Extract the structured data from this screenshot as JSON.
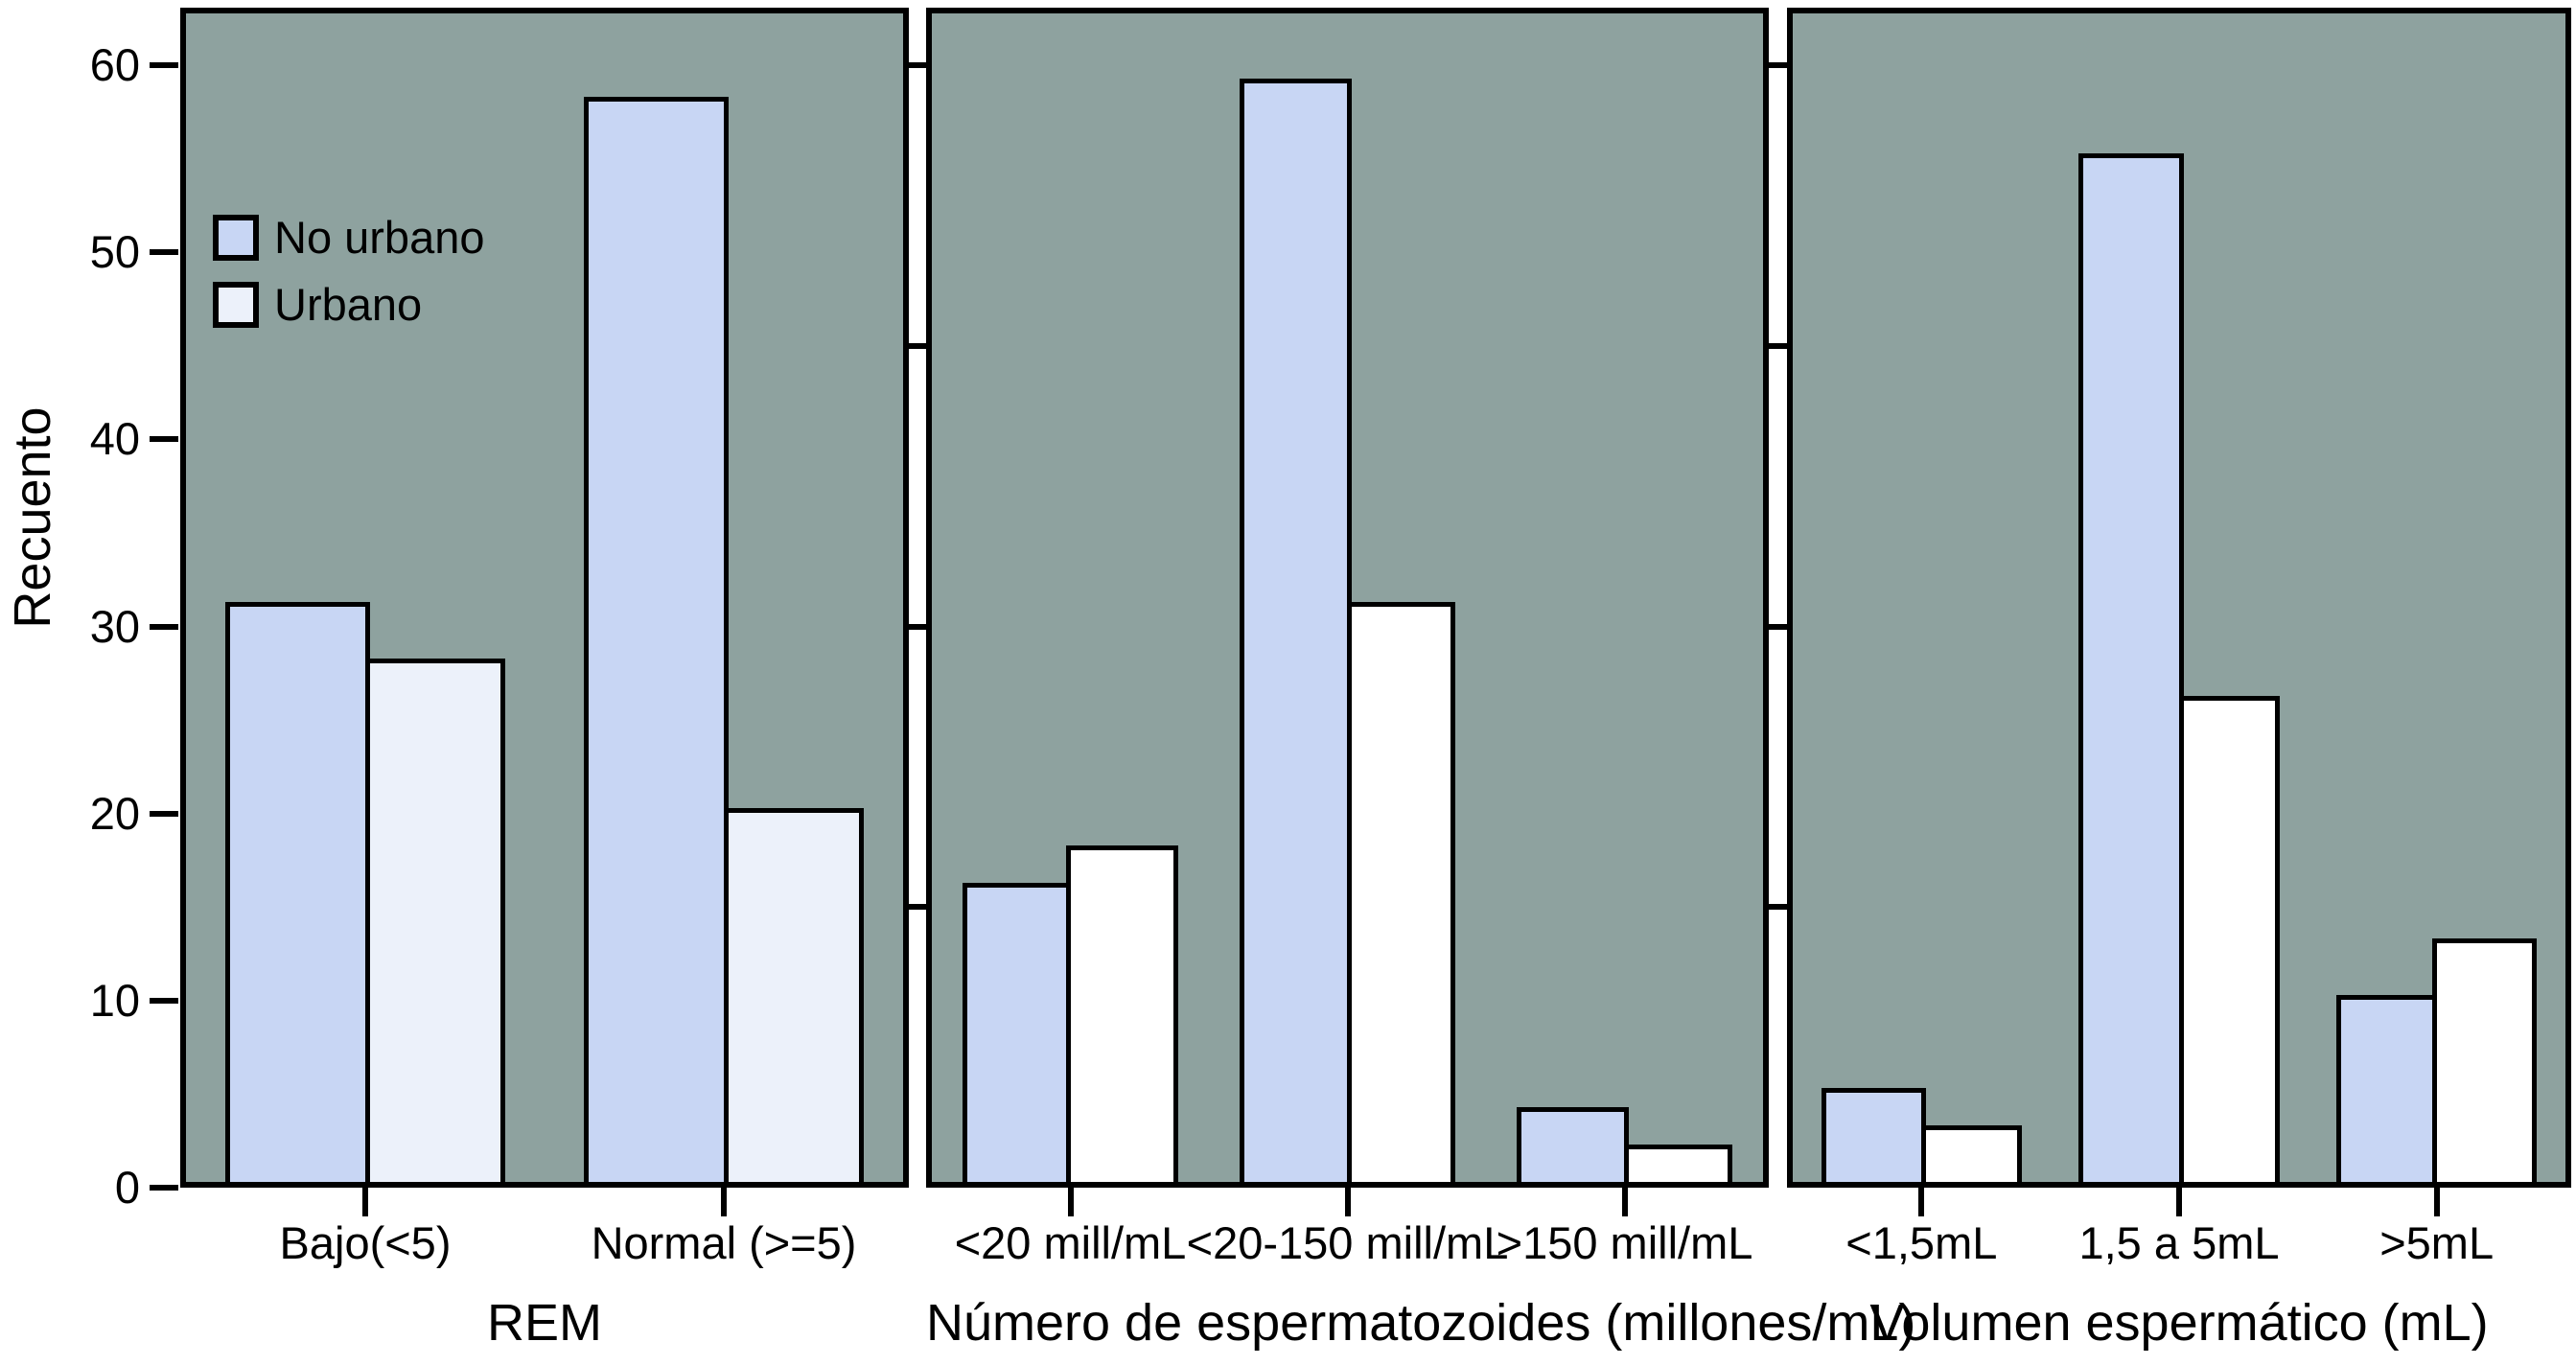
{
  "figure_title": "",
  "chart_data": {
    "type": "bar",
    "title": "",
    "ylabel": "Recuento",
    "xlabel": "",
    "ylim": [
      0,
      60
    ],
    "yticks": [
      0,
      10,
      20,
      30,
      40,
      50,
      60
    ],
    "panel_edge_ticks": [
      15,
      30,
      45,
      60
    ],
    "grid": false,
    "legend": {
      "position": "top-left-inside",
      "entries": [
        {
          "label": "No urbano",
          "color": "#c8d6f4"
        },
        {
          "label": "Urbano",
          "color": "#ecf1fa"
        }
      ]
    },
    "colors": {
      "panel_background": "#8ea29f",
      "stroke": "#000000",
      "no_urbano_fill": "#c8d6f4",
      "urbano_fill_panel1": "#ecf1fa",
      "urbano_fill_panels23": "#ffffff"
    },
    "panels": [
      {
        "xlabel": "REM",
        "categories": [
          "Bajo(<5)",
          "Normal (>=5)"
        ],
        "series": [
          {
            "name": "No urbano",
            "color": "#c8d6f4",
            "values": [
              31,
              58
            ]
          },
          {
            "name": "Urbano",
            "color": "#ecf1fa",
            "values": [
              28,
              20
            ]
          }
        ]
      },
      {
        "xlabel": "Número de espermatozoides (millones/mL)",
        "categories": [
          "<20 mill/mL",
          "<20-150 mill/mL",
          ">150 mill/mL"
        ],
        "series": [
          {
            "name": "No urbano",
            "color": "#c8d6f4",
            "values": [
              16,
              59,
              4
            ]
          },
          {
            "name": "Urbano",
            "color": "#ffffff",
            "values": [
              18,
              31,
              2
            ]
          }
        ]
      },
      {
        "xlabel": "Volumen espermático (mL)",
        "categories": [
          "<1,5mL",
          "1,5 a 5mL",
          ">5mL"
        ],
        "series": [
          {
            "name": "No urbano",
            "color": "#c8d6f4",
            "values": [
              5,
              55,
              10
            ]
          },
          {
            "name": "Urbano",
            "color": "#ffffff",
            "values": [
              3,
              26,
              13
            ]
          }
        ]
      }
    ]
  }
}
